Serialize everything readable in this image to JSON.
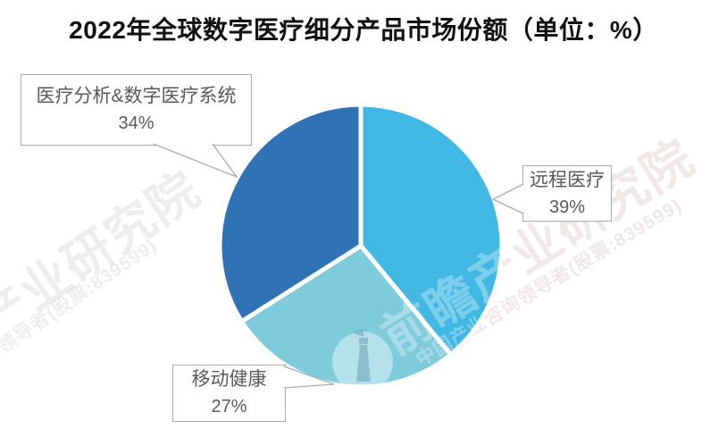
{
  "title": "2022年全球数字医疗细分产品市场份额（单位：%）",
  "chart_data": {
    "type": "pie",
    "title": "2022年全球数字医疗细分产品市场份额（单位：%）",
    "unit": "%",
    "start_angle_deg": 0,
    "direction": "clockwise",
    "legend_position": "none",
    "label_style": "callout boxes with category name and percentage",
    "segments": [
      {
        "label": "远程医疗",
        "value": 39,
        "display": "39%",
        "color": "#41B8E4"
      },
      {
        "label": "移动健康",
        "value": 27,
        "display": "27%",
        "color": "#7ECBDC"
      },
      {
        "label": "医疗分析&数字医疗系统",
        "value": 34,
        "display": "34%",
        "color": "#2F72B6"
      }
    ]
  },
  "watermark": {
    "brand": "前瞻产业研究院",
    "tagline": "中国产业咨询领导者(股票:839599)"
  },
  "colors": {
    "background": "#FFFFFF",
    "title_text": "#111111",
    "label_text": "#595959",
    "label_border": "#ABABAB",
    "slice_gap": "#FFFFFF"
  }
}
